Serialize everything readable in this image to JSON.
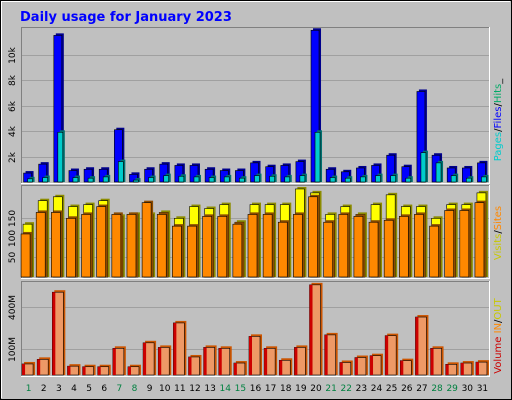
{
  "title": "Daily usage for January 2023",
  "colors": {
    "frame_bg": "#c0c0c0",
    "plot_bg": "#c0c0c0",
    "title": "#0000ff",
    "pages": "#00cccc",
    "files": "#0000ff",
    "hits": "#00aa66",
    "visits": "#ffff00",
    "sites": "#ff8800",
    "volume": "#cc0000",
    "in": "#ff8800",
    "out": "#ffff00",
    "weekend": "#008040",
    "weekday": "#000000"
  },
  "chart_data": [
    {
      "type": "bar",
      "panel": "top",
      "ylim": [
        0,
        12000
      ],
      "yticks": [
        "2k",
        "4k",
        "6k",
        "8k",
        "10k"
      ],
      "ytick_values": [
        2000,
        4000,
        6000,
        8000,
        10000
      ],
      "legend": {
        "pages": "Pages",
        "files": "Files",
        "hits": "Hits",
        "sep": "/",
        "tail": "_"
      },
      "x": [
        1,
        2,
        3,
        4,
        5,
        6,
        7,
        8,
        9,
        10,
        11,
        12,
        13,
        14,
        15,
        16,
        17,
        18,
        19,
        20,
        21,
        22,
        23,
        24,
        25,
        26,
        27,
        28,
        29,
        30,
        31
      ],
      "series": [
        {
          "name": "Hits",
          "values": [
            700,
            1400,
            11500,
            900,
            1000,
            1000,
            4100,
            600,
            1000,
            1400,
            1300,
            1300,
            1000,
            900,
            900,
            1500,
            1200,
            1300,
            1600,
            11900,
            1000,
            800,
            1100,
            1300,
            2100,
            1200,
            7100,
            2100,
            1100,
            1100,
            1500
          ]
        },
        {
          "name": "Files",
          "values": [
            650,
            1350,
            11400,
            850,
            950,
            950,
            4000,
            550,
            950,
            1350,
            1250,
            1250,
            950,
            850,
            850,
            1450,
            1150,
            1250,
            1550,
            11800,
            950,
            750,
            1050,
            1250,
            2050,
            1150,
            7000,
            2000,
            1050,
            1050,
            1450
          ]
        },
        {
          "name": "Pages",
          "values": [
            250,
            350,
            3900,
            350,
            300,
            400,
            1600,
            150,
            350,
            500,
            450,
            400,
            350,
            400,
            300,
            500,
            450,
            400,
            500,
            3900,
            350,
            300,
            400,
            500,
            500,
            300,
            2300,
            1500,
            500,
            300,
            400
          ]
        }
      ]
    },
    {
      "type": "bar",
      "panel": "middle",
      "ylim": [
        0,
        230
      ],
      "yticks": [
        "50",
        "100",
        "150"
      ],
      "ytick_values": [
        50,
        100,
        150
      ],
      "legend": {
        "visits": "Visits",
        "sites": "Sites",
        "sep": "/"
      },
      "x": [
        1,
        2,
        3,
        4,
        5,
        6,
        7,
        8,
        9,
        10,
        11,
        12,
        13,
        14,
        15,
        16,
        17,
        18,
        19,
        20,
        21,
        22,
        23,
        24,
        25,
        26,
        27,
        28,
        29,
        30,
        31
      ],
      "series": [
        {
          "name": "Visits",
          "values": [
            135,
            195,
            205,
            180,
            185,
            195,
            155,
            160,
            160,
            165,
            150,
            180,
            175,
            185,
            140,
            185,
            185,
            185,
            225,
            215,
            160,
            180,
            160,
            185,
            210,
            180,
            180,
            150,
            185,
            185,
            215
          ]
        },
        {
          "name": "Sites",
          "values": [
            110,
            165,
            165,
            150,
            160,
            180,
            160,
            160,
            190,
            160,
            130,
            130,
            155,
            155,
            135,
            160,
            160,
            140,
            160,
            205,
            140,
            160,
            155,
            140,
            145,
            155,
            160,
            130,
            170,
            170,
            190
          ]
        }
      ]
    },
    {
      "type": "bar",
      "panel": "bottom",
      "ylim": [
        0,
        500
      ],
      "yticks": [
        "100M",
        "400M"
      ],
      "ytick_values": [
        140,
        372
      ],
      "legend": {
        "volume": "Volume",
        "in": "IN",
        "out": "OUT",
        "sep": "/"
      },
      "x": [
        1,
        2,
        3,
        4,
        5,
        6,
        7,
        8,
        9,
        10,
        11,
        12,
        13,
        14,
        15,
        16,
        17,
        18,
        19,
        20,
        21,
        22,
        23,
        24,
        25,
        26,
        27,
        28,
        29,
        30,
        31
      ],
      "series": [
        {
          "name": "Volume",
          "values": [
            60,
            85,
            450,
            48,
            45,
            45,
            145,
            45,
            175,
            150,
            283,
            98,
            150,
            145,
            65,
            210,
            145,
            80,
            150,
            490,
            218,
            68,
            95,
            105,
            214,
            78,
            315,
            145,
            58,
            65,
            70
          ]
        }
      ]
    }
  ],
  "x_labels": [
    "1",
    "2",
    "3",
    "4",
    "5",
    "6",
    "7",
    "8",
    "9",
    "10",
    "11",
    "12",
    "13",
    "14",
    "15",
    "16",
    "17",
    "18",
    "19",
    "20",
    "21",
    "22",
    "23",
    "24",
    "25",
    "26",
    "27",
    "28",
    "29",
    "30",
    "31"
  ],
  "weekend_days": [
    1,
    7,
    8,
    14,
    15,
    21,
    22,
    28,
    29
  ]
}
